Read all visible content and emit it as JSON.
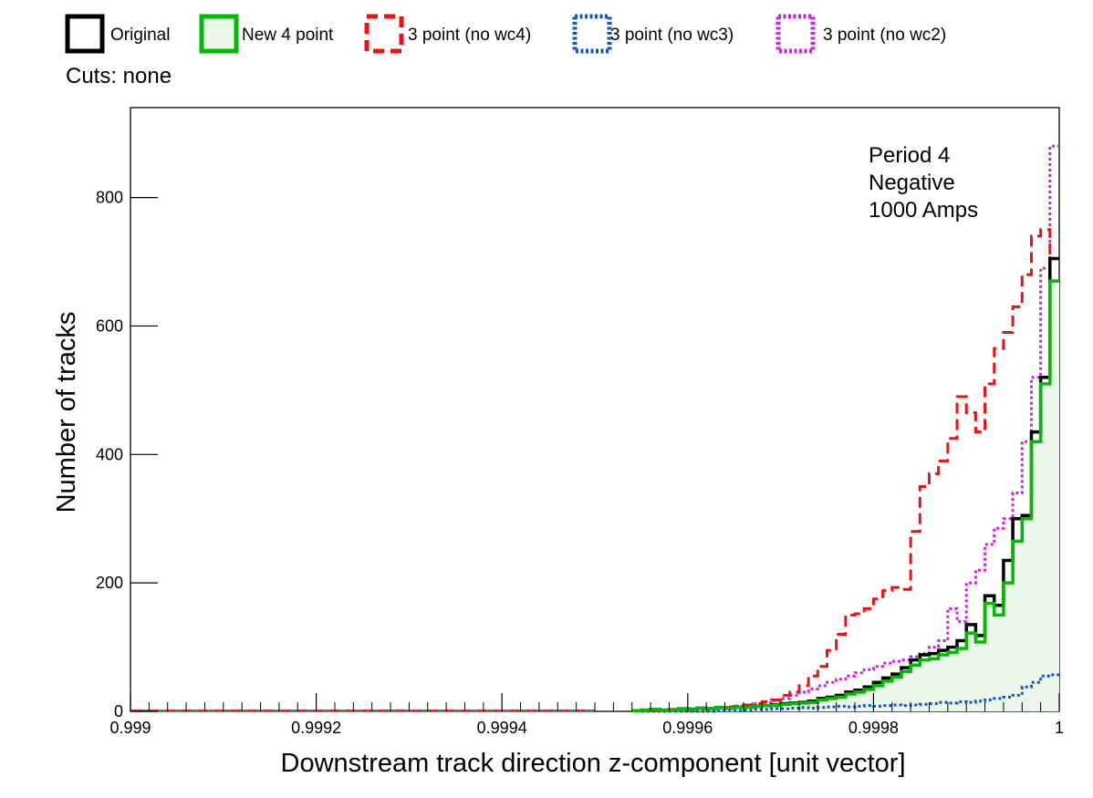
{
  "chart_data": {
    "type": "line",
    "style": "step-histogram",
    "xlabel": "Downstream track direction z-component [unit vector]",
    "ylabel": "Number of tracks",
    "xlim": [
      0.999,
      1.0
    ],
    "ylim": [
      0,
      940
    ],
    "x_ticks": [
      "0.999",
      "0.9992",
      "0.9994",
      "0.9996",
      "0.9998",
      "1"
    ],
    "x_tick_values": [
      0.999,
      0.9992,
      0.9994,
      0.9996,
      0.9998,
      1.0
    ],
    "y_ticks": [
      "0",
      "200",
      "400",
      "600",
      "800"
    ],
    "y_tick_values": [
      0,
      200,
      400,
      600,
      800
    ],
    "cuts_text": "Cuts: none",
    "annotation": [
      "Period 4",
      "Negative",
      "1000 Amps"
    ],
    "legend_position": "top",
    "grid": false,
    "x_start": 0.9995,
    "bin_width": 1e-05,
    "series": [
      {
        "name": "Original",
        "color": "#000000",
        "style": "solid",
        "values": [
          1,
          2,
          3,
          2,
          2,
          4,
          3,
          5,
          4,
          6,
          5,
          6,
          7,
          8,
          9,
          10,
          12,
          13,
          14,
          16,
          20,
          22,
          25,
          30,
          33,
          38,
          45,
          52,
          58,
          68,
          80,
          88,
          90,
          95,
          100,
          110,
          135,
          118,
          180,
          165,
          235,
          300,
          305,
          435,
          520,
          705
        ]
      },
      {
        "name": "New 4 point",
        "color": "#00bb00",
        "fill": "#eaf7ea",
        "style": "solid",
        "values": [
          1,
          2,
          3,
          2,
          2,
          4,
          3,
          5,
          4,
          6,
          5,
          6,
          7,
          8,
          9,
          9,
          11,
          12,
          13,
          14,
          18,
          20,
          22,
          27,
          30,
          34,
          40,
          47,
          53,
          62,
          72,
          80,
          82,
          88,
          92,
          98,
          122,
          108,
          168,
          150,
          200,
          265,
          300,
          420,
          510,
          670
        ]
      },
      {
        "name": "3 point (no wc4)",
        "color": "#ee1111",
        "style": "dashed",
        "values": [
          1,
          2,
          3,
          3,
          4,
          5,
          5,
          6,
          7,
          8,
          10,
          12,
          15,
          18,
          25,
          30,
          40,
          55,
          70,
          95,
          120,
          150,
          152,
          160,
          175,
          188,
          193,
          190,
          280,
          350,
          370,
          390,
          425,
          490,
          465,
          435,
          510,
          565,
          590,
          630,
          680,
          740,
          750,
          670
        ]
      },
      {
        "name": "3 point (no wc3)",
        "color": "#1155cc",
        "style": "dotted",
        "values": [
          0,
          0,
          0,
          0,
          0,
          0,
          0,
          0,
          1,
          1,
          1,
          2,
          3,
          3,
          4,
          4,
          5,
          6,
          5,
          6,
          7,
          8,
          7,
          8,
          9,
          8,
          9,
          10,
          9,
          10,
          11,
          12,
          14,
          13,
          15,
          14,
          16,
          18,
          20,
          22,
          25,
          38,
          45,
          55,
          57
        ]
      },
      {
        "name": "3 point (no wc2)",
        "color": "#cc22dd",
        "style": "dotted",
        "values": [
          2,
          3,
          4,
          5,
          5,
          6,
          8,
          10,
          12,
          14,
          17,
          20,
          25,
          30,
          35,
          40,
          45,
          50,
          55,
          60,
          65,
          70,
          75,
          78,
          80,
          85,
          90,
          100,
          110,
          160,
          140,
          200,
          220,
          260,
          285,
          300,
          340,
          420,
          520,
          690,
          880
        ]
      }
    ]
  }
}
